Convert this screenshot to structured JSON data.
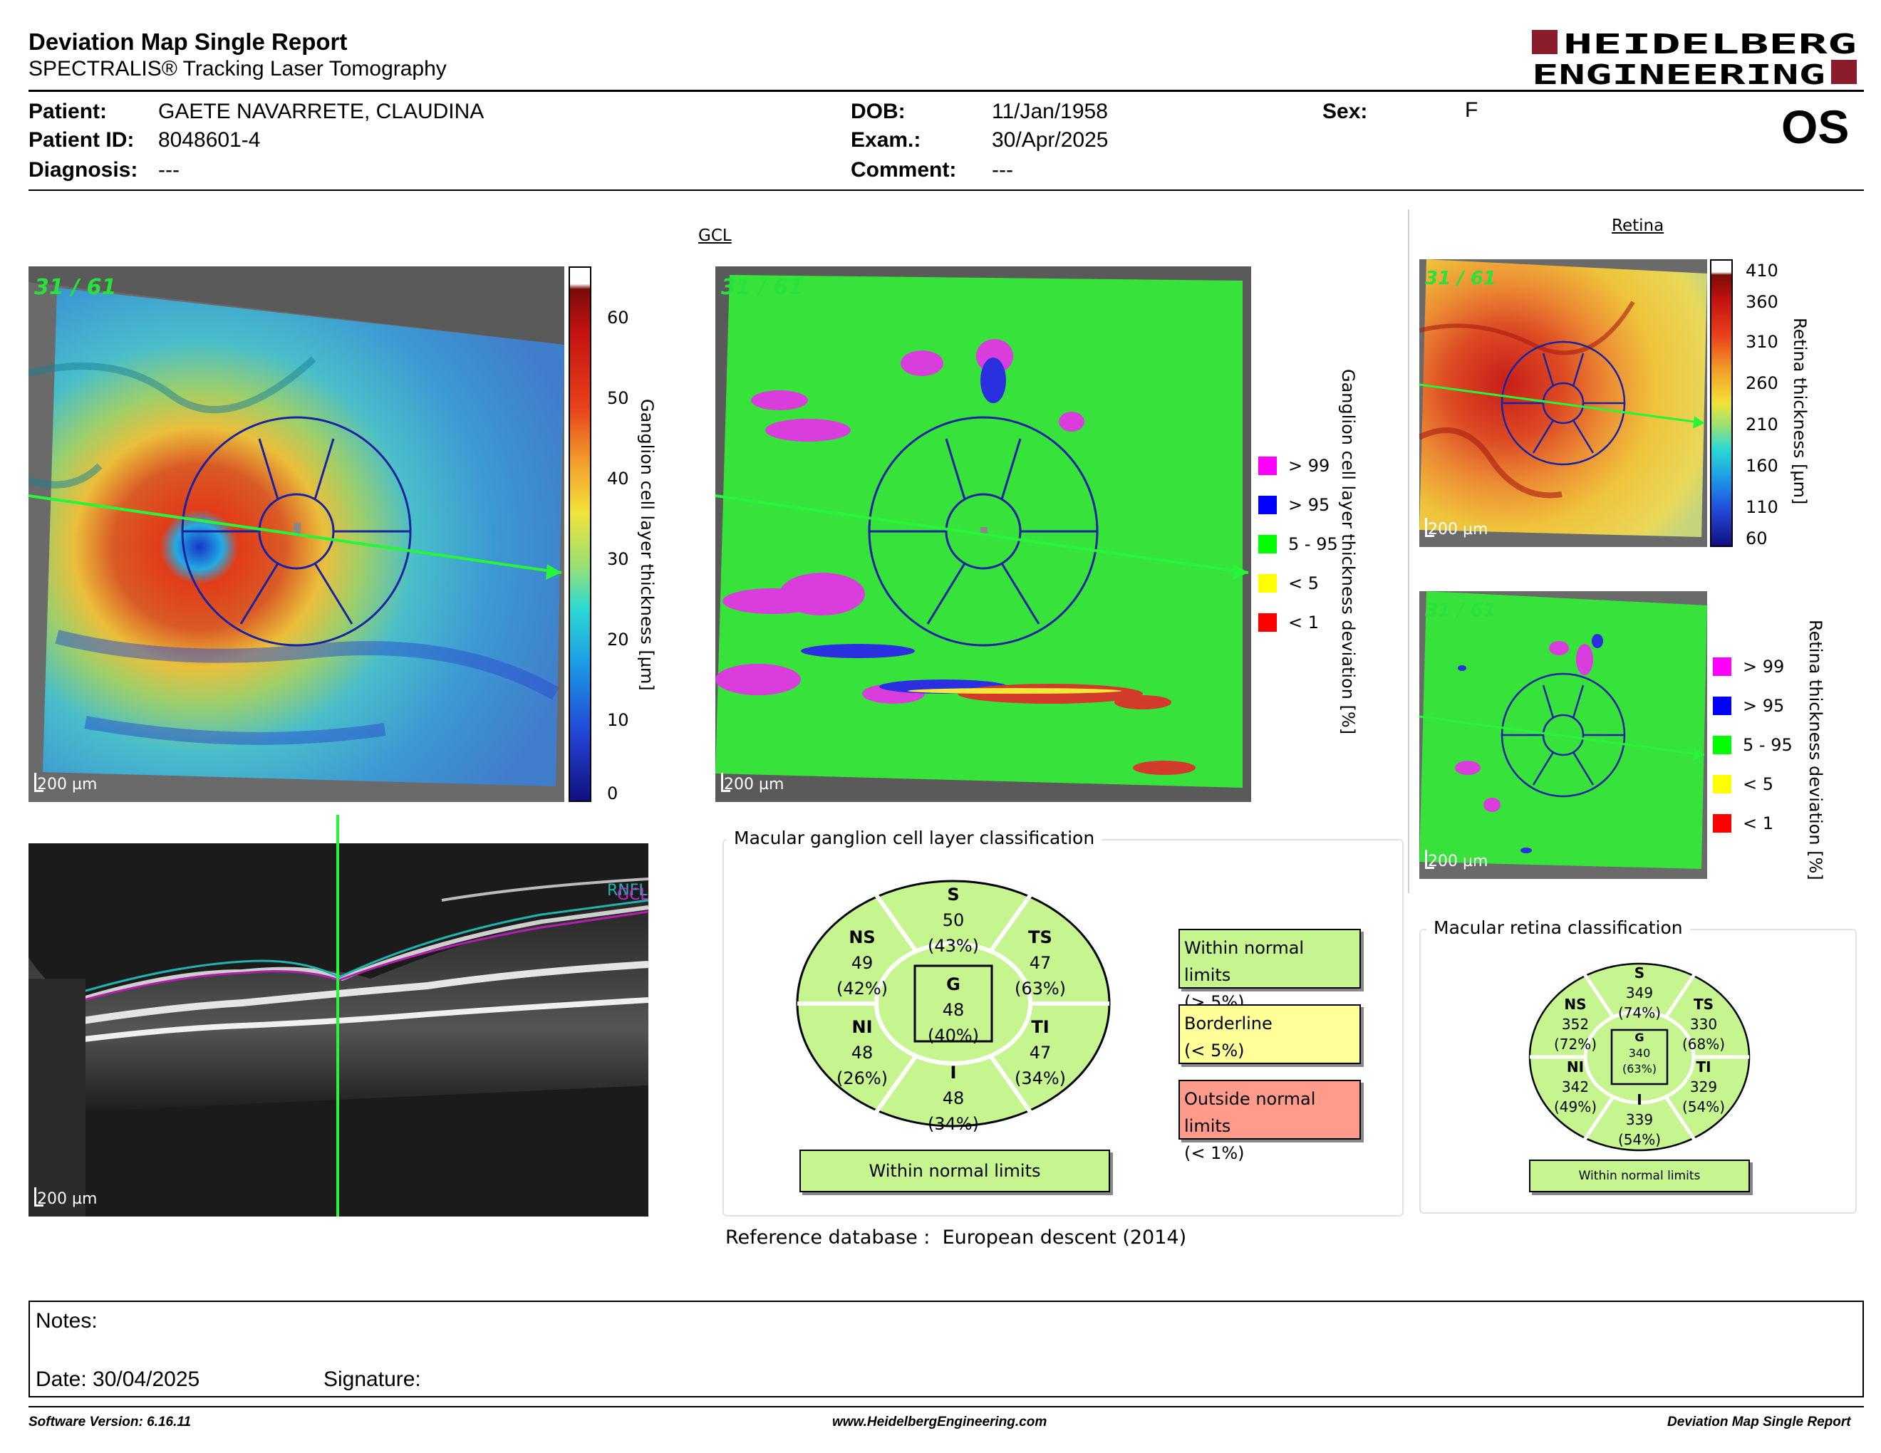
{
  "report": {
    "title": "Deviation Map Single Report",
    "subtitle": "SPECTRALIS® Tracking Laser Tomography",
    "logo_line1": "HEIDELBERG",
    "logo_line2": "ENGINEERING"
  },
  "patient": {
    "name_label": "Patient:",
    "name": "GAETE NAVARRETE, CLAUDINA",
    "id_label": "Patient ID:",
    "id": "8048601-4",
    "diagnosis_label": "Diagnosis:",
    "diagnosis": "---",
    "dob_label": "DOB:",
    "dob": "11/Jan/1958",
    "exam_label": "Exam.:",
    "exam": "30/Apr/2025",
    "comment_label": "Comment:",
    "comment": "---",
    "sex_label": "Sex:",
    "sex": "F",
    "eye": "OS"
  },
  "gcl": {
    "section_title": "GCL",
    "scan_id": "31 / 61",
    "scale": "200 µm",
    "thickness_label": "Ganglion cell layer thickness [µm]",
    "thickness_ticks": [
      "60",
      "50",
      "40",
      "30",
      "20",
      "10",
      "0"
    ],
    "deviation_label": "Ganglion cell layer thickness deviation [%]",
    "legend": [
      {
        "label": "> 99",
        "color": "#ff00ff"
      },
      {
        "label": "> 95",
        "color": "#0000ff"
      },
      {
        "label": "5 - 95",
        "color": "#00ff00"
      },
      {
        "label": "< 5",
        "color": "#ffff00"
      },
      {
        "label": "< 1",
        "color": "#ff0000"
      }
    ]
  },
  "oct": {
    "scale": "200 µm",
    "layer_label_1": "RNFL",
    "layer_label_2": "GCL"
  },
  "retina": {
    "section_title": "Retina",
    "scan_id_top": "31 / 61",
    "scan_id_bottom": "31 / 61",
    "scale_top": "200 µm",
    "scale_bottom": "200 µm",
    "thickness_label": "Retina thickness [µm]",
    "thickness_ticks": [
      "410",
      "360",
      "310",
      "260",
      "210",
      "160",
      "110",
      "60"
    ],
    "deviation_label": "Retina thickness deviation [%]",
    "legend": [
      {
        "label": "> 99",
        "color": "#ff00ff"
      },
      {
        "label": "> 95",
        "color": "#0000ff"
      },
      {
        "label": "5 - 95",
        "color": "#00ff00"
      },
      {
        "label": "< 5",
        "color": "#ffff00"
      },
      {
        "label": "< 1",
        "color": "#ff0000"
      }
    ]
  },
  "gcl_classification": {
    "title": "Macular ganglion cell layer classification",
    "S": {
      "name": "S",
      "value": "50",
      "pct": "(43%)"
    },
    "NS": {
      "name": "NS",
      "value": "49",
      "pct": "(42%)"
    },
    "TS": {
      "name": "TS",
      "value": "47",
      "pct": "(63%)"
    },
    "G": {
      "name": "G",
      "value": "48",
      "pct": "(40%)"
    },
    "NI": {
      "name": "NI",
      "value": "48",
      "pct": "(26%)"
    },
    "TI": {
      "name": "TI",
      "value": "47",
      "pct": "(34%)"
    },
    "I": {
      "name": "I",
      "value": "48",
      "pct": "(34%)"
    },
    "result": "Within normal limits",
    "categories": {
      "within_1": "Within normal limits",
      "within_2": "(> 5%)",
      "border_1": "Borderline",
      "border_2": "(< 5%)",
      "outside_1": "Outside normal limits",
      "outside_2": "(< 1%)"
    },
    "colors": {
      "within": "#c6f58f",
      "borderline": "#ffff99",
      "outside": "#ff9b8a"
    }
  },
  "retina_classification": {
    "title": "Macular retina classification",
    "S": {
      "name": "S",
      "value": "349",
      "pct": "(74%)"
    },
    "NS": {
      "name": "NS",
      "value": "352",
      "pct": "(72%)"
    },
    "TS": {
      "name": "TS",
      "value": "330",
      "pct": "(68%)"
    },
    "G": {
      "name": "G",
      "value": "340",
      "pct": "(63%)"
    },
    "NI": {
      "name": "NI",
      "value": "342",
      "pct": "(49%)"
    },
    "TI": {
      "name": "TI",
      "value": "329",
      "pct": "(54%)"
    },
    "I": {
      "name": "I",
      "value": "339",
      "pct": "(54%)"
    },
    "result": "Within normal limits"
  },
  "reference": {
    "label": "Reference database :",
    "value": "European descent (2014)"
  },
  "notes": {
    "notes_label": "Notes:",
    "date_label": "Date: 30/04/2025",
    "signature_label": "Signature:"
  },
  "footer": {
    "software": "Software Version: 6.16.11",
    "website": "www.HeidelbergEngineering.com",
    "report_name": "Deviation Map Single Report"
  }
}
